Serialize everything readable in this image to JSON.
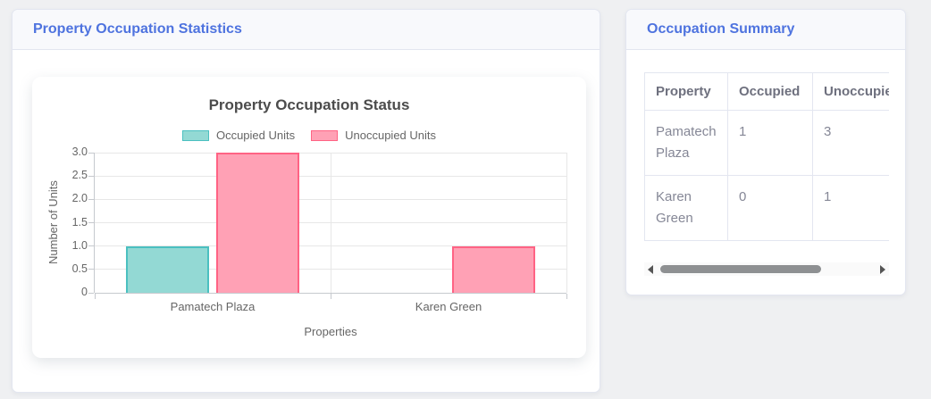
{
  "theme": {
    "primary": "#4e73df",
    "page_bg": "#eff0f2",
    "card_header_bg": "#f8f9fc",
    "card_border": "#e3e6f0",
    "table_header_text": "#6e707e",
    "table_cell_text": "#858796"
  },
  "left_card": {
    "title": "Property Occupation Statistics"
  },
  "right_card": {
    "title": "Occupation Summary",
    "table": {
      "columns": [
        "Property",
        "Occupied",
        "Unoccupied"
      ],
      "rows": [
        [
          "Pamatech Plaza",
          "1",
          "3"
        ],
        [
          "Karen Green",
          "0",
          "1"
        ]
      ]
    }
  },
  "chart_data": {
    "type": "bar",
    "title": "Property Occupation Status",
    "categories": [
      "Pamatech Plaza",
      "Karen Green"
    ],
    "series": [
      {
        "name": "Occupied Units",
        "values": [
          1,
          0
        ],
        "fill": "#93d9d4",
        "border": "#4bc0c0"
      },
      {
        "name": "Unoccupied Units",
        "values": [
          3,
          1
        ],
        "fill": "#ffa1b5",
        "border": "#ff6384"
      }
    ],
    "xlabel": "Properties",
    "ylabel": "Number of Units",
    "ylim": [
      0,
      3
    ],
    "ytick_values": [
      0,
      0.5,
      1,
      1.5,
      2,
      2.5,
      3
    ],
    "ytick_labels": [
      "0",
      "0.5",
      "1.0",
      "1.5",
      "2.0",
      "2.5",
      "3.0"
    ],
    "grid": true,
    "legend_position": "top"
  }
}
